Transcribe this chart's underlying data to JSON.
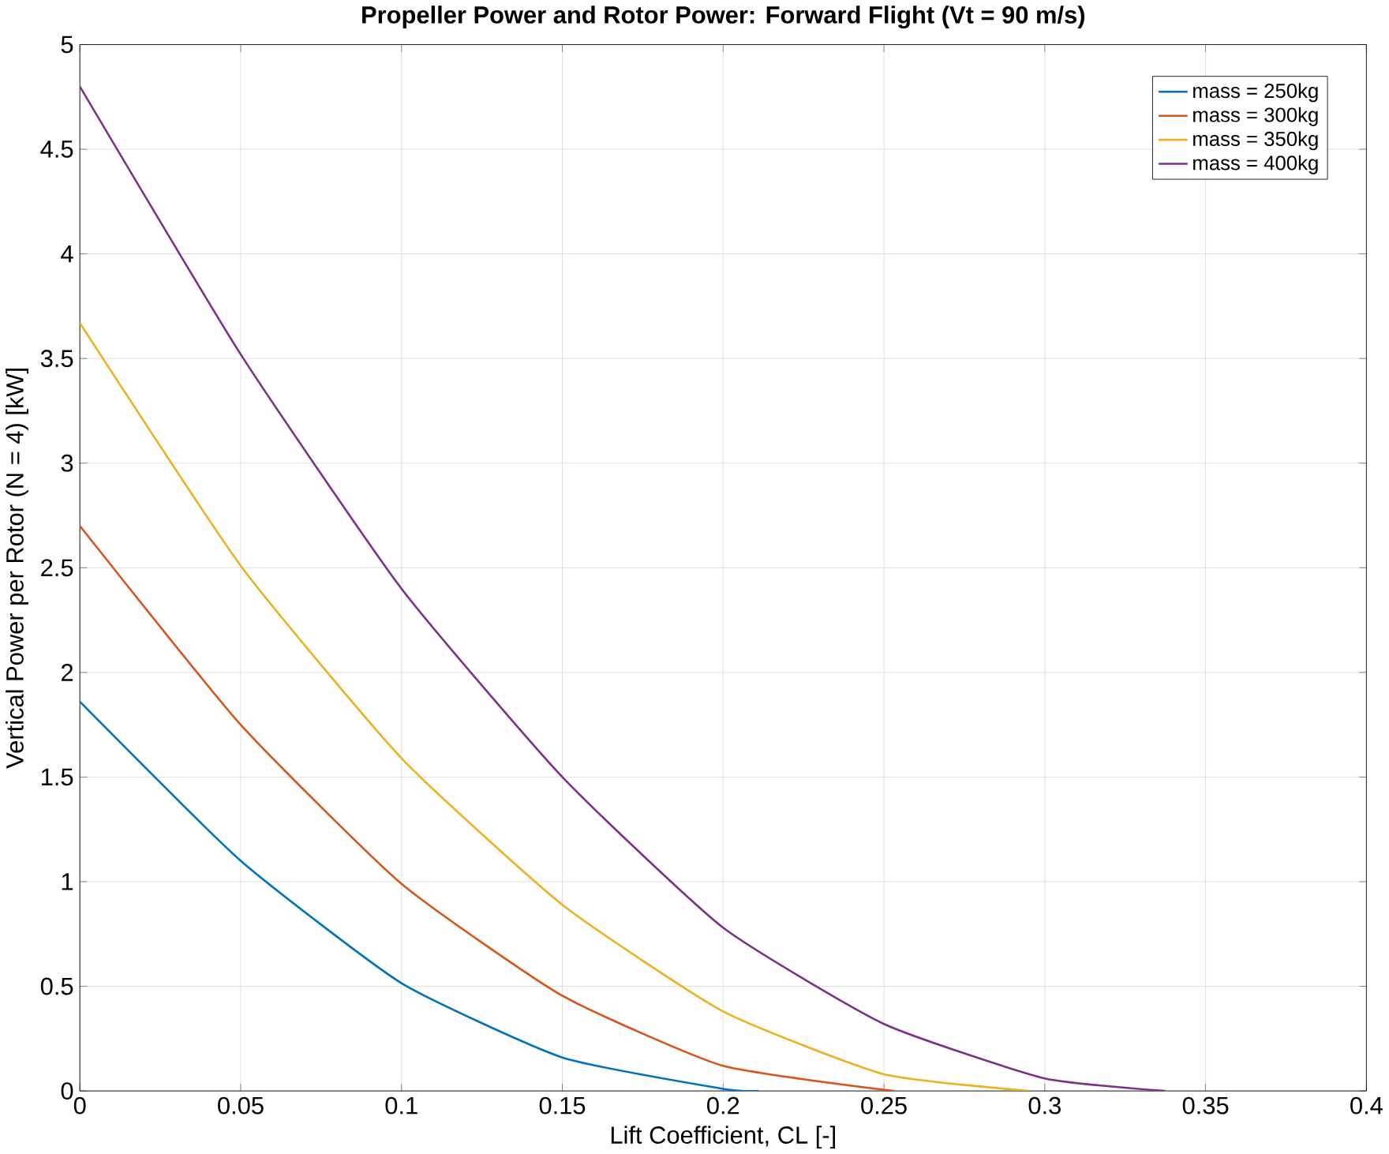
{
  "chart_data": {
    "type": "line",
    "title": "Propeller Power and Rotor Power: Forward Flight (Vt = 90 m/s)",
    "xlabel": "Lift Coefficient, CL [-]",
    "ylabel": "Vertical Power per Rotor (N = 4) [kW]",
    "xlim": [
      0,
      0.4
    ],
    "ylim": [
      0,
      5
    ],
    "xticks": [
      0,
      0.05,
      0.1,
      0.15,
      0.2,
      0.25,
      0.3,
      0.35,
      0.4
    ],
    "yticks": [
      0,
      0.5,
      1,
      1.5,
      2,
      2.5,
      3,
      3.5,
      4,
      4.5,
      5
    ],
    "grid": true,
    "legend": "top right",
    "line_style": "solid",
    "marker": "none",
    "series": [
      {
        "name": "mass = 250kg",
        "color": "#0072bd",
        "x": [
          0,
          0.05,
          0.1,
          0.15,
          0.2,
          0.211
        ],
        "values": [
          1.86,
          1.1,
          0.515,
          0.16,
          0.01,
          0
        ]
      },
      {
        "name": "mass = 300kg",
        "color": "#d95319",
        "x": [
          0,
          0.05,
          0.1,
          0.15,
          0.2,
          0.253
        ],
        "values": [
          2.7,
          1.75,
          0.99,
          0.455,
          0.12,
          0
        ]
      },
      {
        "name": "mass = 350kg",
        "color": "#edb120",
        "x": [
          0,
          0.05,
          0.1,
          0.15,
          0.2,
          0.25,
          0.295
        ],
        "values": [
          3.67,
          2.51,
          1.59,
          0.89,
          0.38,
          0.08,
          0
        ]
      },
      {
        "name": "mass = 400kg",
        "color": "#7e2f8e",
        "x": [
          0,
          0.05,
          0.1,
          0.15,
          0.2,
          0.25,
          0.3,
          0.3375
        ],
        "values": [
          4.8,
          3.52,
          2.4,
          1.5,
          0.78,
          0.32,
          0.06,
          0
        ]
      }
    ]
  }
}
